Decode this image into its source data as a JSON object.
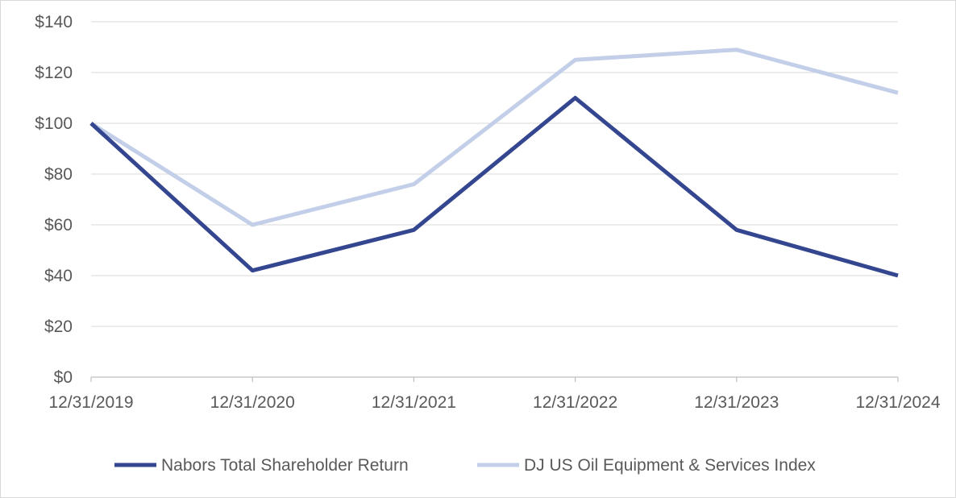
{
  "chart_data": {
    "type": "line",
    "title": "",
    "xlabel": "",
    "ylabel": "",
    "x": [
      "12/31/2019",
      "12/31/2020",
      "12/31/2021",
      "12/31/2022",
      "12/31/2023",
      "12/31/2024"
    ],
    "ylim": [
      0,
      140
    ],
    "y_ticks": [
      0,
      20,
      40,
      60,
      80,
      100,
      120,
      140
    ],
    "y_tick_labels": [
      "$0",
      "$20",
      "$40",
      "$60",
      "$80",
      "$100",
      "$120",
      "$140"
    ],
    "grid": "horizontal",
    "legend_position": "bottom",
    "series": [
      {
        "name": "Nabors Total Shareholder Return",
        "color": "#34468f",
        "values": [
          100,
          42,
          58,
          110,
          58,
          40
        ]
      },
      {
        "name": "DJ US Oil Equipment & Services Index",
        "color": "#c3cfe9",
        "values": [
          100,
          60,
          76,
          125,
          129,
          112
        ]
      }
    ]
  }
}
